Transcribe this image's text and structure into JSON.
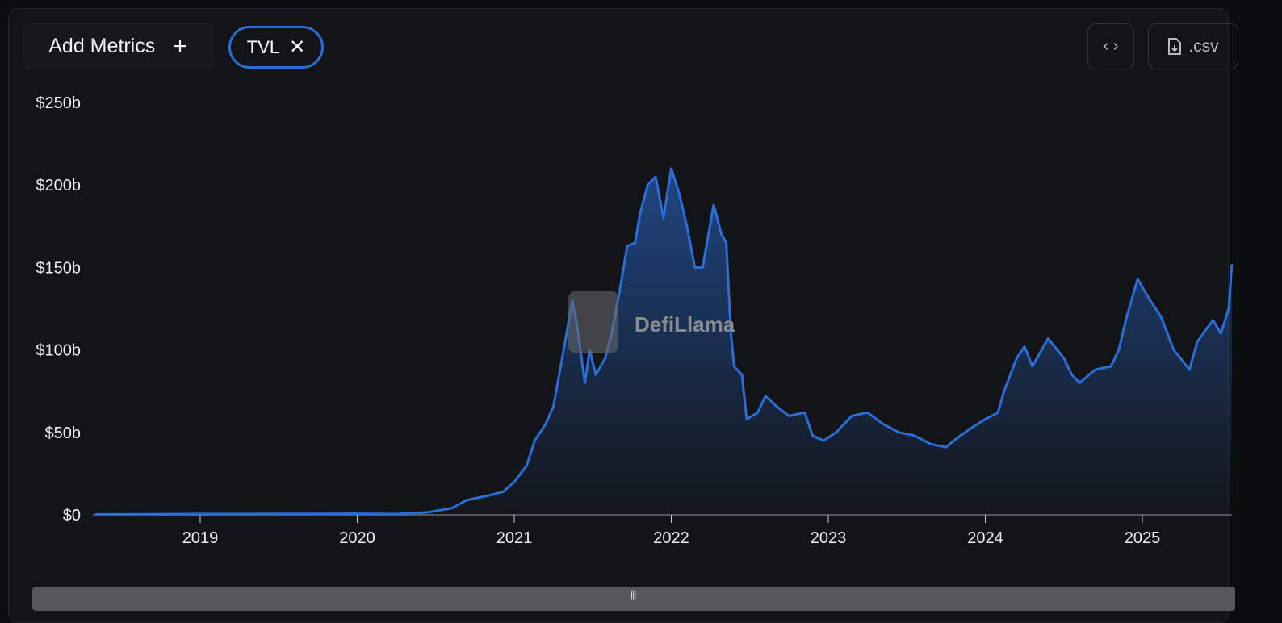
{
  "toolbar": {
    "add_metrics_label": "Add Metrics",
    "add_icon": "plus-icon",
    "metric_chip_label": "TVL",
    "remove_icon": "close-icon",
    "embed_icon": "code-icon",
    "csv_label": ".csv",
    "csv_icon": "file-download-icon"
  },
  "watermark": "DefiLlama",
  "colors": {
    "line": "#2a6ed8",
    "background": "#131417"
  },
  "chart_data": {
    "type": "area",
    "title": "",
    "xlabel": "",
    "ylabel": "",
    "ylim": [
      0,
      250
    ],
    "yticks": [
      "$0",
      "$50b",
      "$100b",
      "$150b",
      "$200b",
      "$250b"
    ],
    "ytick_values": [
      0,
      50,
      100,
      150,
      200,
      250
    ],
    "xticks": [
      "2019",
      "2020",
      "2021",
      "2022",
      "2023",
      "2024",
      "2025"
    ],
    "grid": false,
    "series": [
      {
        "unit": "USD billions",
        "x": [
          2018.33,
          2019.0,
          2020.0,
          2020.25,
          2020.45,
          2020.6,
          2020.7,
          2020.85,
          2020.93,
          2021.0,
          2021.08,
          2021.13,
          2021.2,
          2021.25,
          2021.3,
          2021.37,
          2021.4,
          2021.45,
          2021.48,
          2021.52,
          2021.58,
          2021.62,
          2021.67,
          2021.72,
          2021.77,
          2021.8,
          2021.85,
          2021.9,
          2021.95,
          2022.0,
          2022.05,
          2022.1,
          2022.15,
          2022.2,
          2022.27,
          2022.32,
          2022.35,
          2022.38,
          2022.4,
          2022.45,
          2022.48,
          2022.55,
          2022.6,
          2022.68,
          2022.75,
          2022.85,
          2022.9,
          2022.97,
          2023.05,
          2023.15,
          2023.25,
          2023.35,
          2023.45,
          2023.55,
          2023.65,
          2023.75,
          2023.8,
          2023.9,
          2024.0,
          2024.08,
          2024.12,
          2024.2,
          2024.25,
          2024.3,
          2024.4,
          2024.5,
          2024.55,
          2024.6,
          2024.7,
          2024.8,
          2024.85,
          2024.9,
          2024.97,
          2025.05,
          2025.12,
          2025.2,
          2025.3,
          2025.35,
          2025.45,
          2025.5,
          2025.55,
          2025.57
        ],
        "values": [
          0.3,
          0.5,
          0.7,
          0.5,
          1.5,
          4,
          9,
          12,
          14,
          20,
          30,
          45,
          55,
          66,
          92,
          130,
          115,
          80,
          100,
          85,
          95,
          110,
          135,
          163,
          165,
          182,
          200,
          205,
          180,
          210,
          195,
          175,
          150,
          150,
          188,
          170,
          165,
          110,
          90,
          85,
          58,
          62,
          72,
          65,
          60,
          62,
          48,
          45,
          50,
          60,
          62,
          55,
          50,
          48,
          43,
          41,
          45,
          52,
          58,
          62,
          75,
          95,
          102,
          90,
          107,
          95,
          85,
          80,
          88,
          90,
          100,
          120,
          143,
          130,
          120,
          100,
          88,
          105,
          118,
          110,
          125,
          152
        ]
      }
    ]
  }
}
